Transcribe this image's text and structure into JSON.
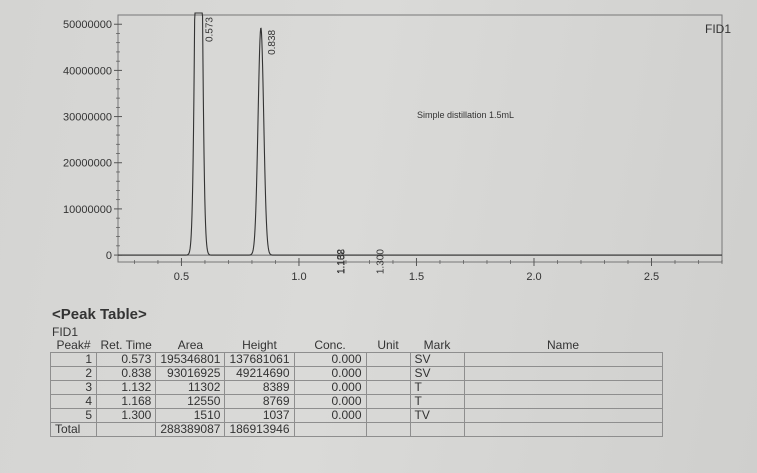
{
  "chart_data": {
    "type": "line",
    "detector_label": "FID1",
    "annotation": "Simple distillation 1.5mL",
    "x_unit": "min",
    "xlim": [
      0.23,
      2.8
    ],
    "ylim": [
      -1500000,
      52000000
    ],
    "x_ticks": [
      0.5,
      1.0,
      1.5,
      2.0,
      2.5
    ],
    "x_tick_labels": [
      "0.5",
      "1.0",
      "1.5",
      "2.0",
      "2.5"
    ],
    "y_ticks": [
      0,
      10000000,
      20000000,
      30000000,
      40000000,
      50000000
    ],
    "y_tick_labels": [
      "0",
      "10000000",
      "20000000",
      "30000000",
      "40000000",
      "50000000"
    ],
    "peaks": [
      {
        "label": "0.573",
        "x": 0.573,
        "height": 137681061,
        "width": 0.012
      },
      {
        "label": "0.838",
        "x": 0.838,
        "height": 49214690,
        "width": 0.012
      },
      {
        "label": "1.132",
        "x": 1.132,
        "height": 8389,
        "width": 0.01
      },
      {
        "label": "1.168",
        "x": 1.168,
        "height": 8769,
        "width": 0.01
      },
      {
        "label": "1.300",
        "x": 1.3,
        "height": 1037,
        "width": 0.01
      }
    ],
    "grid": false,
    "legend": "none"
  },
  "peak_table": {
    "title": "<Peak Table>",
    "detector": "FID1",
    "headers": [
      "Peak#",
      "Ret. Time",
      "Area",
      "Height",
      "Conc.",
      "Unit",
      "Mark",
      "Name"
    ],
    "rows": [
      [
        "1",
        "0.573",
        "195346801",
        "137681061",
        "0.000",
        "",
        "SV",
        ""
      ],
      [
        "2",
        "0.838",
        "93016925",
        "49214690",
        "0.000",
        "",
        "SV",
        ""
      ],
      [
        "3",
        "1.132",
        "11302",
        "8389",
        "0.000",
        "",
        "T",
        ""
      ],
      [
        "4",
        "1.168",
        "12550",
        "8769",
        "0.000",
        "",
        "T",
        ""
      ],
      [
        "5",
        "1.300",
        "1510",
        "1037",
        "0.000",
        "",
        "TV",
        ""
      ]
    ],
    "total": [
      "Total",
      "",
      "288389087",
      "186913946",
      "",
      "",
      "",
      ""
    ]
  }
}
